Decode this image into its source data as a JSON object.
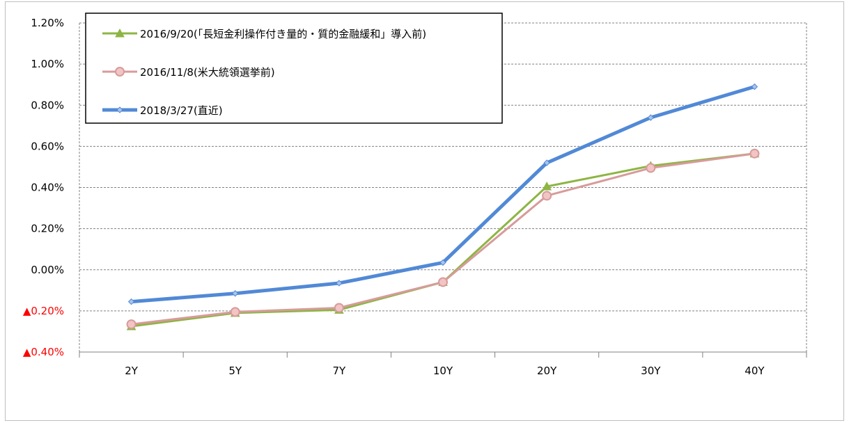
{
  "chart_data": {
    "type": "line",
    "title": "",
    "xlabel": "",
    "ylabel": "",
    "categories": [
      "2Y",
      "5Y",
      "7Y",
      "10Y",
      "20Y",
      "30Y",
      "40Y"
    ],
    "y_ticks": [
      {
        "value": 1.2,
        "label": "1.20%"
      },
      {
        "value": 1.0,
        "label": "1.00%"
      },
      {
        "value": 0.8,
        "label": "0.80%"
      },
      {
        "value": 0.6,
        "label": "0.60%"
      },
      {
        "value": 0.4,
        "label": "0.40%"
      },
      {
        "value": 0.2,
        "label": "0.20%"
      },
      {
        "value": 0.0,
        "label": "0.00%"
      },
      {
        "value": -0.2,
        "label": "▲0.20%"
      },
      {
        "value": -0.4,
        "label": "▲0.40%"
      }
    ],
    "ylim": [
      -0.4,
      1.2
    ],
    "grid": "horizontal dashed",
    "legend_position": "top-left",
    "series": [
      {
        "name": "2016/9/20(「長短金利操作付き量的・質的金融緩和」導入前)",
        "color": "#8db543",
        "marker": "triangle",
        "values": [
          -0.275,
          -0.21,
          -0.195,
          -0.06,
          0.405,
          0.505,
          0.565
        ]
      },
      {
        "name": "2016/11/8(米大統領選挙前)",
        "color": "#d79b9b",
        "marker": "circle",
        "values": [
          -0.265,
          -0.205,
          -0.185,
          -0.06,
          0.36,
          0.495,
          0.565
        ]
      },
      {
        "name": "2018/3/27(直近)",
        "color": "#5189d6",
        "marker": "diamond",
        "values": [
          -0.155,
          -0.115,
          -0.065,
          0.035,
          0.52,
          0.74,
          0.89
        ]
      }
    ]
  }
}
